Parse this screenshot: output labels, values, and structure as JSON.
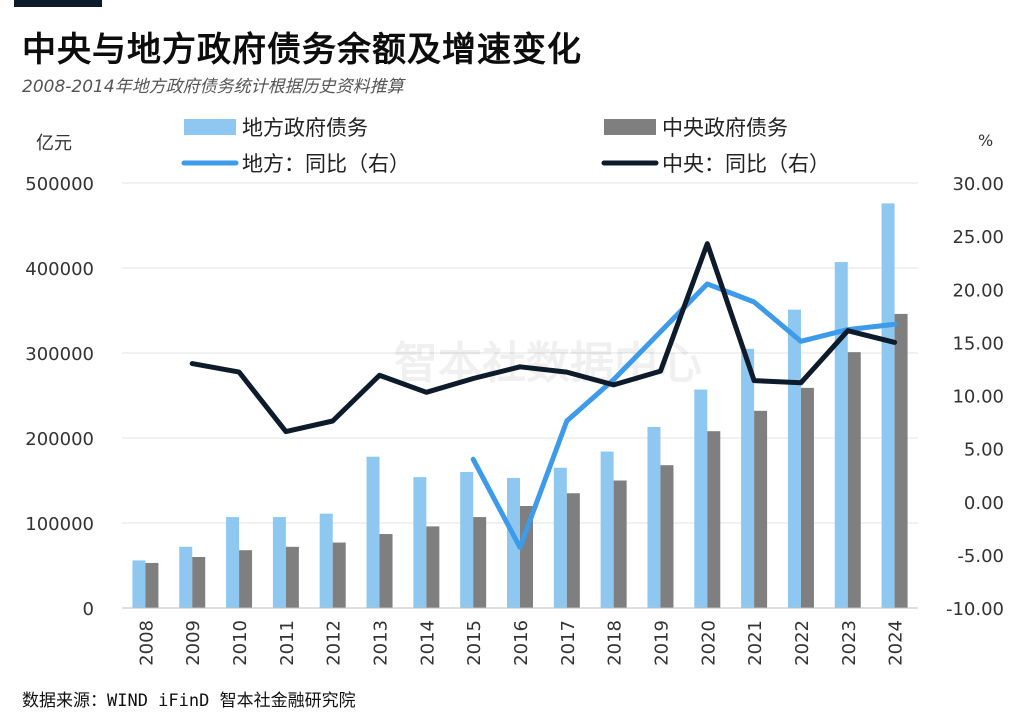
{
  "title": "中央与地方政府债务余额及增速变化",
  "subtitle": "2008-2014年地方政府债务统计根据历史资料推算",
  "source": "数据来源：WIND iFinD 智本社金融研究院",
  "watermark": "智本社数据中心",
  "chart_data": {
    "type": "bar+line",
    "categories": [
      "2008",
      "2009",
      "2010",
      "2011",
      "2012",
      "2013",
      "2014",
      "2015",
      "2016",
      "2017",
      "2018",
      "2019",
      "2020",
      "2021",
      "2022",
      "2023",
      "2024"
    ],
    "left_axis": {
      "unit_label": "亿元",
      "ylim": [
        0,
        500000
      ],
      "ticks": [
        "0",
        "100000",
        "200000",
        "300000",
        "400000",
        "500000"
      ],
      "tick_values": [
        0,
        100000,
        200000,
        300000,
        400000,
        500000
      ]
    },
    "right_axis": {
      "unit_label": "%",
      "ylim": [
        -10,
        30
      ],
      "ticks": [
        "-10.00",
        "-5.00",
        "0.00",
        "5.00",
        "10.00",
        "15.00",
        "20.00",
        "25.00",
        "30.00"
      ],
      "tick_values": [
        -10,
        -5,
        0,
        5,
        10,
        15,
        20,
        25,
        30
      ]
    },
    "grid": true,
    "legend_position": "top",
    "series": [
      {
        "name": "地方政府债务",
        "kind": "bar",
        "axis": "left",
        "color": "#8ec8f0",
        "values": [
          56000,
          72000,
          107000,
          107000,
          111000,
          178000,
          154000,
          160000,
          153000,
          165000,
          184000,
          213000,
          257000,
          305000,
          351000,
          407000,
          476000
        ]
      },
      {
        "name": "中央政府债务",
        "kind": "bar",
        "axis": "left",
        "color": "#7f7f7f",
        "values": [
          53000,
          60000,
          68000,
          72000,
          77000,
          87000,
          96000,
          107000,
          120000,
          135000,
          150000,
          168000,
          208000,
          232000,
          259000,
          301000,
          346000
        ]
      },
      {
        "name": "地方：同比（右）",
        "kind": "line",
        "axis": "right",
        "color": "#3d9be9",
        "values": [
          null,
          null,
          null,
          null,
          null,
          null,
          null,
          4.0,
          -4.3,
          7.6,
          11.5,
          16.0,
          20.5,
          18.8,
          15.1,
          16.2,
          16.7
        ]
      },
      {
        "name": "中央：同比（右）",
        "kind": "line",
        "axis": "right",
        "color": "#0d1b2a",
        "values": [
          null,
          13.0,
          12.2,
          6.6,
          7.6,
          11.9,
          10.3,
          11.6,
          12.7,
          12.2,
          11.0,
          12.3,
          24.3,
          11.4,
          11.2,
          16.1,
          15.0
        ]
      }
    ]
  }
}
